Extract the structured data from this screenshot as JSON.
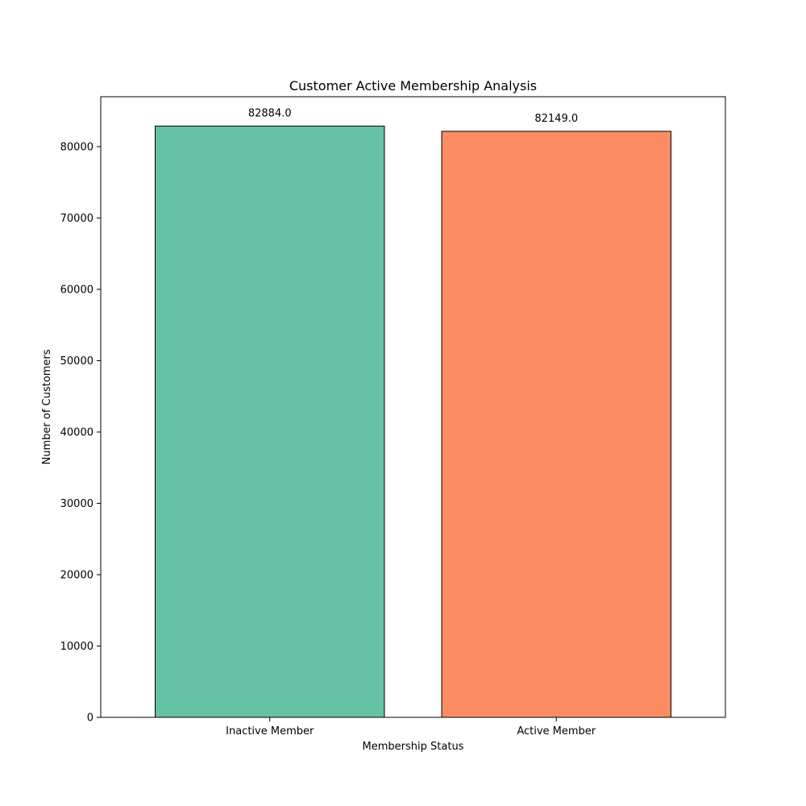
{
  "chart_data": {
    "type": "bar",
    "title": "Customer Active Membership Analysis",
    "xlabel": "Membership Status",
    "ylabel": "Number of Customers",
    "categories": [
      "Inactive Member",
      "Active Member"
    ],
    "values": [
      82884.0,
      82149.0
    ],
    "value_labels": [
      "82884.0",
      "82149.0"
    ],
    "colors": [
      "#66c2a5",
      "#fc8d62"
    ],
    "edge_color": "#000000",
    "ylim": [
      0,
      87000
    ],
    "yticks": [
      0,
      10000,
      20000,
      30000,
      40000,
      50000,
      60000,
      70000,
      80000
    ],
    "ytick_labels": [
      "0",
      "10000",
      "20000",
      "30000",
      "40000",
      "50000",
      "60000",
      "70000",
      "80000"
    ],
    "grid": false,
    "legend": "none"
  }
}
